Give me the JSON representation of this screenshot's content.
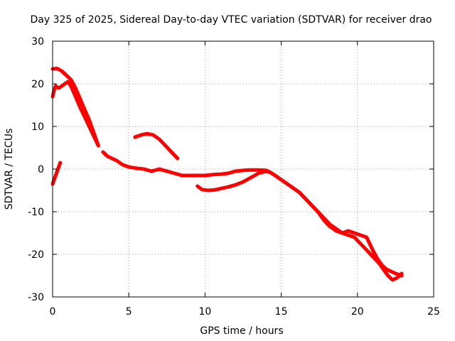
{
  "chart_data": {
    "type": "scatter",
    "title": "Day 325 of 2025, Sidereal Day-to-day VTEC variation (SDTVAR) for receiver drao",
    "xlabel": "GPS time / hours",
    "ylabel": "SDTVAR / TECUs",
    "xlim": [
      0,
      25
    ],
    "ylim": [
      -30,
      30
    ],
    "x_ticks": [
      0,
      5,
      10,
      15,
      20,
      25
    ],
    "y_ticks": [
      -30,
      -20,
      -10,
      0,
      10,
      20,
      30
    ],
    "grid": true,
    "legend": "none",
    "series_color": "#ff0000",
    "series": [
      {
        "name": "trace-a",
        "x": [
          0.0,
          0.3,
          0.6,
          0.9,
          1.2,
          1.5,
          1.8,
          2.1,
          2.4,
          2.7,
          3.0
        ],
        "y": [
          23.5,
          23.6,
          23.0,
          22.0,
          21.0,
          19.0,
          16.5,
          14.0,
          11.5,
          8.5,
          5.5
        ]
      },
      {
        "name": "trace-b",
        "x": [
          0.0,
          0.1,
          0.2,
          0.4,
          0.6,
          0.8,
          1.0,
          1.2,
          1.5,
          1.8,
          2.2,
          2.6,
          3.0
        ],
        "y": [
          17.0,
          18.5,
          19.5,
          19.0,
          19.5,
          20.0,
          20.5,
          19.5,
          17.0,
          14.5,
          11.5,
          8.5,
          5.5
        ]
      },
      {
        "name": "trace-c",
        "x": [
          3.3,
          3.6,
          3.9,
          4.2,
          4.6,
          5.0,
          5.5,
          6.0,
          6.5,
          7.0,
          7.5,
          8.0,
          8.5,
          9.0,
          9.5,
          10.0,
          10.5,
          11.0,
          11.5,
          12.0,
          12.5,
          13.0,
          13.5,
          14.0,
          14.3,
          14.6,
          15.0,
          15.4,
          15.8,
          16.2,
          16.6,
          17.0,
          17.4,
          17.8,
          18.2,
          18.6,
          19.0,
          19.4,
          19.8,
          20.2,
          20.6,
          21.0,
          21.3,
          21.6,
          21.9,
          22.2,
          22.5,
          22.9
        ],
        "y": [
          4.0,
          3.0,
          2.5,
          2.0,
          1.0,
          0.5,
          0.2,
          0.0,
          -0.5,
          0.0,
          -0.5,
          -1.0,
          -1.5,
          -1.5,
          -1.5,
          -1.5,
          -1.3,
          -1.2,
          -1.0,
          -0.5,
          -0.3,
          -0.2,
          -0.2,
          -0.3,
          -0.8,
          -1.5,
          -2.5,
          -3.5,
          -4.5,
          -5.5,
          -7.0,
          -8.5,
          -10.0,
          -12.0,
          -13.5,
          -14.5,
          -15.0,
          -14.5,
          -15.0,
          -15.5,
          -16.0,
          -19.0,
          -21.0,
          -22.5,
          -23.5,
          -24.0,
          -24.5,
          -25.0
        ]
      },
      {
        "name": "trace-d",
        "x": [
          9.5,
          9.8,
          10.2,
          10.6,
          11.0,
          11.5,
          12.0,
          12.5,
          13.0,
          13.5,
          14.0,
          14.3,
          14.6,
          15.0,
          15.4,
          15.8,
          16.2,
          16.6,
          17.0,
          17.4,
          17.8,
          18.2,
          18.6,
          19.0,
          19.4,
          19.8,
          20.2,
          20.6,
          21.0,
          21.4,
          21.7,
          22.0,
          22.3,
          22.6,
          22.9
        ],
        "y": [
          -4.0,
          -4.8,
          -5.0,
          -4.9,
          -4.6,
          -4.2,
          -3.7,
          -3.0,
          -2.0,
          -1.0,
          -0.5,
          -0.8,
          -1.5,
          -2.5,
          -3.5,
          -4.5,
          -5.5,
          -7.0,
          -8.5,
          -10.0,
          -11.5,
          -13.0,
          -14.0,
          -15.0,
          -15.5,
          -16.0,
          -17.5,
          -19.0,
          -20.5,
          -22.0,
          -23.5,
          -25.0,
          -26.0,
          -25.5,
          -24.5
        ]
      },
      {
        "name": "trace-e",
        "x": [
          5.4,
          5.8,
          6.2,
          6.6,
          7.0,
          7.4,
          7.8,
          8.2
        ],
        "y": [
          7.5,
          8.0,
          8.3,
          8.0,
          7.0,
          5.5,
          4.0,
          2.5
        ]
      },
      {
        "name": "trace-f",
        "x": [
          0.0,
          0.1,
          0.2,
          0.3,
          0.4,
          0.5
        ],
        "y": [
          -3.5,
          -2.5,
          -1.5,
          -0.5,
          0.5,
          1.5
        ]
      }
    ]
  }
}
